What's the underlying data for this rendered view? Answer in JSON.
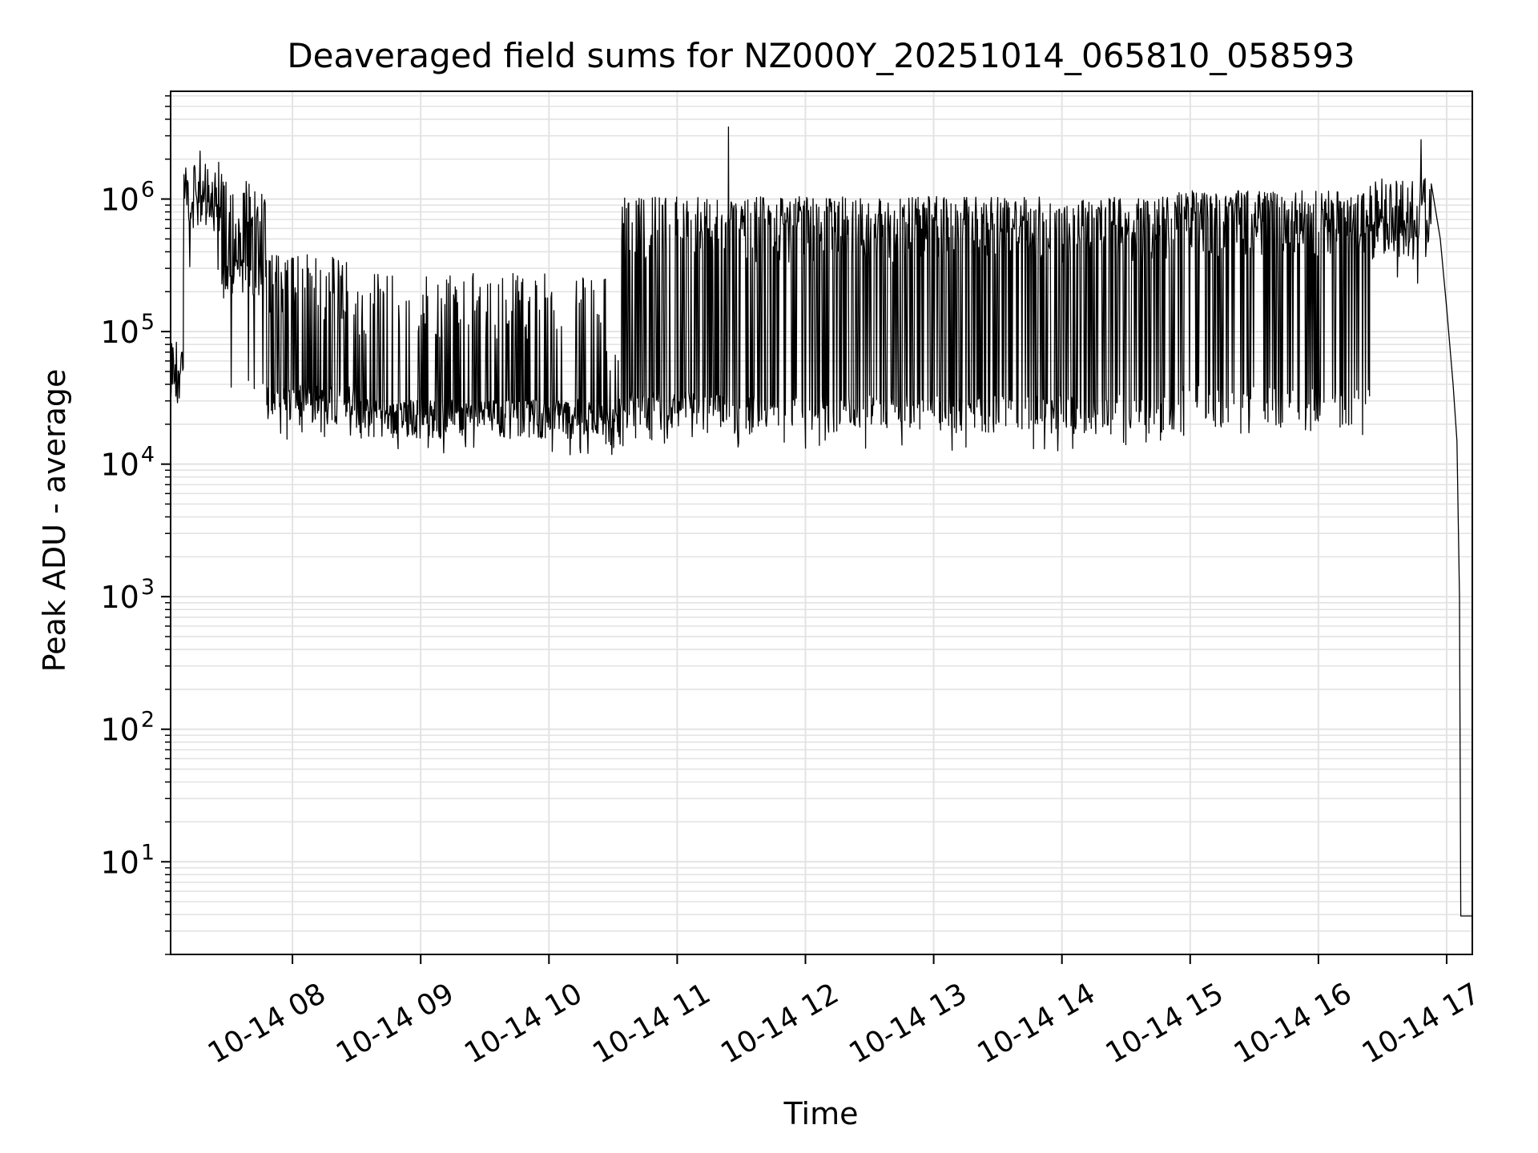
{
  "chart_data": {
    "type": "line",
    "title": "Deaveraged field sums for NZ000Y_20251014_065810_058593",
    "xlabel": "Time",
    "ylabel": "Peak ADU - average",
    "yscale": "log",
    "ylim": [
      2,
      6500000
    ],
    "x_units": "hours since 10-14 00:00",
    "xlim": [
      7.05,
      17.2
    ],
    "grid": true,
    "legend": "none",
    "line_color": "#000000",
    "grid_color": "#e3e3e3",
    "x_ticks": [
      {
        "value": 8,
        "label": "10-14 08"
      },
      {
        "value": 9,
        "label": "10-14 09"
      },
      {
        "value": 10,
        "label": "10-14 10"
      },
      {
        "value": 11,
        "label": "10-14 11"
      },
      {
        "value": 12,
        "label": "10-14 12"
      },
      {
        "value": 13,
        "label": "10-14 13"
      },
      {
        "value": 14,
        "label": "10-14 14"
      },
      {
        "value": 15,
        "label": "10-14 15"
      },
      {
        "value": 16,
        "label": "10-14 16"
      },
      {
        "value": 17,
        "label": "10-14 17"
      }
    ],
    "y_ticks": [
      {
        "value": 10,
        "base": "10",
        "exp": "1"
      },
      {
        "value": 100,
        "base": "10",
        "exp": "2"
      },
      {
        "value": 1000,
        "base": "10",
        "exp": "3"
      },
      {
        "value": 10000,
        "base": "10",
        "exp": "4"
      },
      {
        "value": 100000,
        "base": "10",
        "exp": "5"
      },
      {
        "value": 1000000,
        "base": "10",
        "exp": "6"
      }
    ],
    "series": [
      {
        "name": "Peak ADU - average",
        "segments": [
          {
            "x0": 7.05,
            "x1": 7.15,
            "base": 30000,
            "spike": 80000,
            "spike_frac": 0.5,
            "low": 6500,
            "ramp_to": 40000
          },
          {
            "x0": 7.15,
            "x1": 7.45,
            "base": 800000,
            "spike": 1800000,
            "spike_frac": 0.5,
            "low": 300000
          },
          {
            "x0": 7.45,
            "x1": 7.8,
            "base": 250000,
            "spike": 1300000,
            "spike_frac": 0.45,
            "low": 40000
          },
          {
            "x0": 7.8,
            "x1": 8.5,
            "base": 28000,
            "spike": 350000,
            "spike_frac": 0.35,
            "low": 16000
          },
          {
            "x0": 8.5,
            "x1": 10.45,
            "base": 22000,
            "spike": 250000,
            "spike_frac": 0.22,
            "low": 13000
          },
          {
            "x0": 10.45,
            "x1": 10.55,
            "base": 19000,
            "spike": 80000,
            "spike_frac": 0.2,
            "low": 13000
          },
          {
            "x0": 10.55,
            "x1": 11.2,
            "base": 25000,
            "spike": 950000,
            "spike_frac": 0.45,
            "low": 15000
          },
          {
            "x0": 11.2,
            "x1": 14.9,
            "base": 24000,
            "spike": 950000,
            "spike_frac": 0.6,
            "low": 14000
          },
          {
            "x0": 14.9,
            "x1": 16.4,
            "base": 28000,
            "spike": 1050000,
            "spike_frac": 0.7,
            "low": 18000
          },
          {
            "x0": 16.4,
            "x1": 16.88,
            "base": 500000,
            "spike": 1300000,
            "spike_frac": 0.6,
            "low": 250000
          }
        ],
        "peaks": [
          {
            "x": 7.28,
            "y": 2300000
          },
          {
            "x": 11.4,
            "y": 3500000
          },
          {
            "x": 16.8,
            "y": 2800000
          }
        ],
        "tail": [
          {
            "x": 16.88,
            "y": 1300000
          },
          {
            "x": 16.95,
            "y": 500000
          },
          {
            "x": 17.0,
            "y": 150000
          },
          {
            "x": 17.05,
            "y": 40000
          },
          {
            "x": 17.08,
            "y": 15000
          },
          {
            "x": 17.1,
            "y": 1000
          },
          {
            "x": 17.11,
            "y": 3.9
          },
          {
            "x": 17.2,
            "y": 3.9
          }
        ]
      }
    ]
  }
}
